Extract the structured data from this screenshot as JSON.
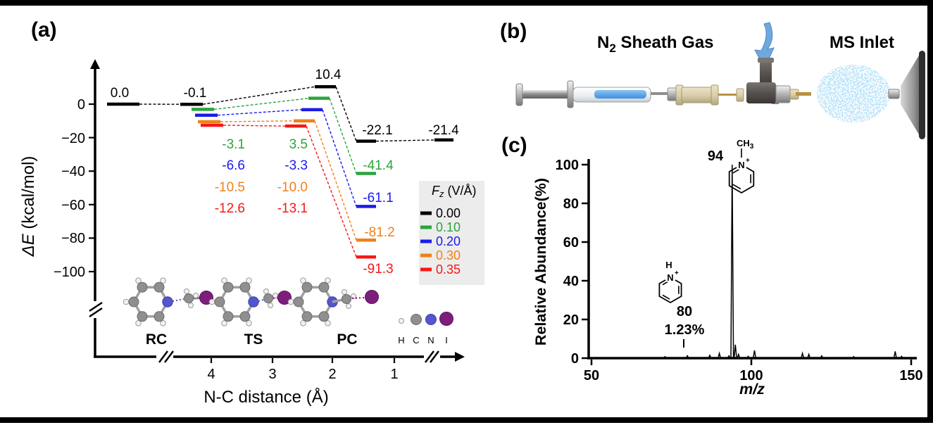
{
  "colors": {
    "black": "#000000",
    "green": "#2BA53C",
    "blue": "#1B1BEB",
    "orange": "#F08019",
    "red": "#F61818",
    "legend_bg": "#ECECEC",
    "spray_blue": "#7EC6F2",
    "arrow_blue": "#6FA8DC",
    "liquid_blue": "#4D9BE8",
    "iodine_purple": "#7D1E7D",
    "nitrogen_blue": "#5356CE",
    "carbon_gray": "#8F8F8F",
    "hydrogen_white": "#F1F1F1"
  },
  "panel_a": {
    "label": "(a)",
    "ylabel_de": "ΔE",
    "ylabel_units": " (kcal/mol)",
    "yticks": [
      "0",
      "−20",
      "−40",
      "−60",
      "−80",
      "−100"
    ],
    "xticks": [
      "4",
      "3",
      "2",
      "1"
    ],
    "xlabel": "N-C distance (Å)",
    "levels": {
      "rc_free": "0.0",
      "rc_black": "-0.1",
      "ts_black": "10.4",
      "pc_black": "-22.1",
      "pc_separated": "-21.4",
      "rc_green": "-3.1",
      "rc_blue": "-6.6",
      "rc_orange": "-10.5",
      "rc_red": "-12.6",
      "ts_green": "3.5",
      "ts_blue": "-3.3",
      "ts_orange": "-10.0",
      "ts_red": "-13.1",
      "pc_green": "-41.4",
      "pc_blue": "-61.1",
      "pc_orange": "-81.2",
      "pc_red": "-91.3"
    },
    "stations": [
      "RC",
      "TS",
      "PC"
    ],
    "legend": {
      "title_f": "F",
      "title_sub": "z",
      "title_units": " (V/Å)",
      "entries": [
        "0.00",
        "0.10",
        "0.20",
        "0.30",
        "0.35"
      ]
    },
    "atoms": [
      "H",
      "C",
      "N",
      "I"
    ]
  },
  "panel_b": {
    "label": "(b)",
    "sheath_n": "N",
    "sheath_sub": "2",
    "sheath_rest": " Sheath Gas",
    "ms_inlet": "MS Inlet"
  },
  "panel_c": {
    "label": "(c)",
    "ylabel": "Relative Abundance(%)",
    "yticks": [
      "100",
      "80",
      "60",
      "40",
      "20",
      "0"
    ],
    "xticks": [
      "50",
      "100",
      "150"
    ],
    "xlabel": "m/z",
    "peak94_label": "94",
    "peak80_label": "80",
    "peak80_pct": "1.23%",
    "mol94": {
      "ch": "CH",
      "sub": "3",
      "n": "N",
      "plus": "+"
    },
    "mol80": {
      "h": "H",
      "n": "N",
      "plus": "+"
    }
  },
  "chart_data": [
    {
      "id": "panel-a-energy-profile",
      "type": "line",
      "xlabel": "N-C distance (Å)",
      "ylabel": "ΔE (kcal/mol)",
      "ylim": [
        -110,
        15
      ],
      "xticks": [
        4,
        3,
        2,
        1
      ],
      "yticks": [
        0,
        -20,
        -40,
        -60,
        -80,
        -100
      ],
      "axis_breaks": true,
      "stations": [
        "RC",
        "TS",
        "PC"
      ],
      "legend_title": "Fz (V/Å)",
      "legend_position": "right",
      "series": [
        {
          "name": "0.00",
          "color": "#000000",
          "RC_free": 0.0,
          "RC": -0.1,
          "TS": 10.4,
          "PC": -22.1,
          "PC_separated": -21.4
        },
        {
          "name": "0.10",
          "color": "#2BA53C",
          "RC": -3.1,
          "TS": 3.5,
          "PC": -41.4
        },
        {
          "name": "0.20",
          "color": "#1B1BEB",
          "RC": -6.6,
          "TS": -3.3,
          "PC": -61.1
        },
        {
          "name": "0.30",
          "color": "#F08019",
          "RC": -10.5,
          "TS": -10.0,
          "PC": -81.2
        },
        {
          "name": "0.35",
          "color": "#F61818",
          "RC": -12.6,
          "TS": -13.1,
          "PC": -91.3
        }
      ]
    },
    {
      "id": "panel-c-mass-spectrum",
      "type": "bar",
      "xlabel": "m/z",
      "ylabel": "Relative Abundance(%)",
      "xlim": [
        45,
        152
      ],
      "ylim": [
        0,
        100
      ],
      "xticks": [
        50,
        100,
        150
      ],
      "yticks": [
        0,
        20,
        40,
        60,
        80,
        100
      ],
      "peaks": [
        {
          "mz": 73,
          "ra": 0.8
        },
        {
          "mz": 80,
          "ra": 1.23
        },
        {
          "mz": 87,
          "ra": 1.5
        },
        {
          "mz": 90,
          "ra": 2.5
        },
        {
          "mz": 93,
          "ra": 1.2
        },
        {
          "mz": 94,
          "ra": 100
        },
        {
          "mz": 95,
          "ra": 7
        },
        {
          "mz": 96,
          "ra": 2
        },
        {
          "mz": 99,
          "ra": 1
        },
        {
          "mz": 101,
          "ra": 4
        },
        {
          "mz": 116,
          "ra": 2.5
        },
        {
          "mz": 118,
          "ra": 2
        },
        {
          "mz": 122,
          "ra": 1.2
        },
        {
          "mz": 132,
          "ra": 0.8
        },
        {
          "mz": 145,
          "ra": 3.5
        },
        {
          "mz": 147,
          "ra": 1
        }
      ],
      "annotated_peaks": [
        {
          "mz": 94,
          "label": "94",
          "assignment": "N-methylpyridinium cation"
        },
        {
          "mz": 80,
          "label": "80",
          "ra_label": "1.23%",
          "assignment": "pyridinium cation"
        }
      ]
    }
  ]
}
